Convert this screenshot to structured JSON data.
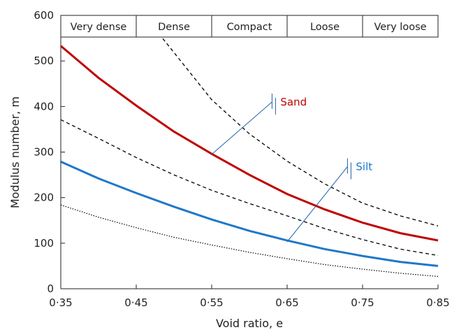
{
  "chart_data": {
    "type": "line",
    "title": "",
    "xlabel": "Void ratio, e",
    "ylabel": "Modulus number, m",
    "xlim": [
      0.35,
      0.85
    ],
    "ylim": [
      0,
      600
    ],
    "x_ticks": [
      0.35,
      0.45,
      0.55,
      0.65,
      0.75,
      0.85
    ],
    "x_tick_labels": [
      "0·35",
      "0·45",
      "0·55",
      "0·65",
      "0·75",
      "0·85"
    ],
    "y_ticks": [
      0,
      100,
      200,
      300,
      400,
      500,
      600
    ],
    "y_tick_labels": [
      "0",
      "100",
      "200",
      "300",
      "400",
      "500",
      "600"
    ],
    "grid": false,
    "density_bands": [
      {
        "label": "Very dense",
        "from": 0.35,
        "to": 0.45
      },
      {
        "label": "Dense",
        "from": 0.45,
        "to": 0.55
      },
      {
        "label": "Compact",
        "from": 0.55,
        "to": 0.65
      },
      {
        "label": "Loose",
        "from": 0.65,
        "to": 0.75
      },
      {
        "label": "Very loose",
        "from": 0.75,
        "to": 0.85
      }
    ],
    "series": [
      {
        "key": "sand",
        "color": "#c00000",
        "style": "solid",
        "x": [
          0.35,
          0.4,
          0.45,
          0.5,
          0.55,
          0.6,
          0.65,
          0.7,
          0.75,
          0.8,
          0.85
        ],
        "y": [
          533,
          463,
          402,
          345,
          296,
          250,
          208,
          174,
          145,
          122,
          106
        ]
      },
      {
        "key": "silt",
        "color": "#1f78c8",
        "style": "solid",
        "x": [
          0.35,
          0.4,
          0.45,
          0.5,
          0.55,
          0.6,
          0.65,
          0.7,
          0.75,
          0.8,
          0.85
        ],
        "y": [
          279,
          242,
          210,
          180,
          152,
          127,
          106,
          87,
          72,
          59,
          50
        ]
      },
      {
        "key": "sand-upper-bound",
        "color": "#000000",
        "style": "dashed",
        "x": [
          0.48,
          0.55,
          0.6,
          0.65,
          0.7,
          0.75,
          0.8,
          0.85
        ],
        "y": [
          560,
          415,
          340,
          280,
          230,
          188,
          160,
          138
        ]
      },
      {
        "key": "sand-lower-bound",
        "color": "#000000",
        "style": "dashed",
        "x": [
          0.35,
          0.4,
          0.45,
          0.5,
          0.55,
          0.6,
          0.65,
          0.7,
          0.75,
          0.8,
          0.85
        ],
        "y": [
          371,
          330,
          288,
          250,
          216,
          187,
          160,
          132,
          108,
          87,
          73
        ]
      },
      {
        "key": "silt-lower-bound",
        "color": "#000000",
        "style": "dotted",
        "x": [
          0.35,
          0.4,
          0.45,
          0.5,
          0.55,
          0.6,
          0.65,
          0.7,
          0.75,
          0.8,
          0.85
        ],
        "y": [
          184,
          157,
          134,
          113,
          96,
          80,
          66,
          53,
          43,
          34,
          27
        ]
      }
    ],
    "annotations": [
      {
        "text": "Sand",
        "color": "#c00000",
        "line_color": "#1f5fa8",
        "from": [
          0.55,
          295
        ],
        "to": [
          0.63,
          410
        ]
      },
      {
        "text": "Silt",
        "color": "#1f78c8",
        "line_color": "#1f5fa8",
        "from": [
          0.65,
          103
        ],
        "to": [
          0.73,
          268
        ]
      }
    ]
  }
}
